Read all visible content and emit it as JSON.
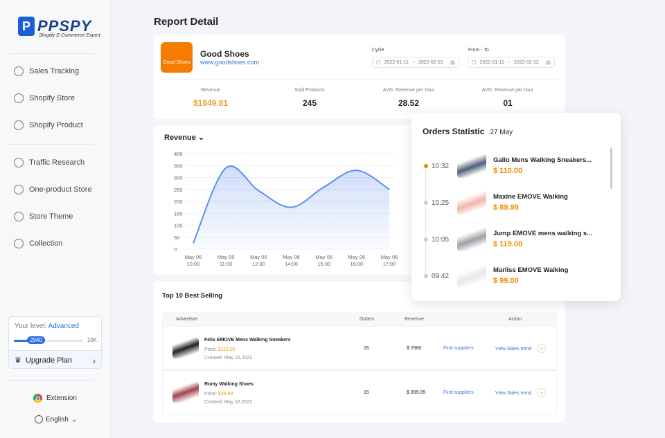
{
  "brand": {
    "name": "PPSPY",
    "tagline": "Shopify E-Commerce Expert"
  },
  "sidebar": {
    "items": [
      {
        "label": "Sales Tracking",
        "icon": "chart-icon"
      },
      {
        "label": "Shopify Store",
        "icon": "store-icon"
      },
      {
        "label": "Shopify Product",
        "icon": "product-icon"
      },
      {
        "label": "Traffic Research",
        "icon": "pie-icon"
      },
      {
        "label": "One-product Store",
        "icon": "home-icon"
      },
      {
        "label": "Store Theme",
        "icon": "palette-icon"
      },
      {
        "label": "Collection",
        "icon": "star-icon"
      }
    ],
    "level": {
      "label": "Your level:",
      "value": "Advanced",
      "points": "2940",
      "max": "10K",
      "progress": 0.294
    },
    "upgrade": "Upgrade Plan",
    "extension": "Extension",
    "language": "English"
  },
  "page_title": "Report Detail",
  "shop": {
    "logo_text": "Good Shoes",
    "name": "Good Shoes",
    "url": "www.goodshoes.com",
    "cycle": {
      "label": "Cycle",
      "from": "2022-01-11",
      "to": "2022-02-22"
    },
    "range": {
      "label": "From - To",
      "from": "2022-01-11",
      "to": "2022-02-22"
    },
    "stats": [
      {
        "label": "Revenue",
        "value": "$1849.81"
      },
      {
        "label": "Sold Products",
        "value": "245"
      },
      {
        "label": "AVG. Revenue per hour",
        "value": "28.52"
      },
      {
        "label": "AVG. Revenue per hour",
        "value": "01"
      }
    ]
  },
  "chart_data": {
    "type": "area",
    "title": "Revenue",
    "categories": [
      "May 06 10:00",
      "May 06 11:00",
      "May 06 12:00",
      "May 06 14:00",
      "May 06 15:00",
      "May 06 16:00",
      "May 06 17:00"
    ],
    "values": [
      25,
      340,
      245,
      175,
      260,
      330,
      250
    ],
    "yticks": [
      0,
      50,
      100,
      150,
      200,
      250,
      300,
      350,
      400
    ],
    "ylim": [
      0,
      400
    ],
    "color": "#5b8def"
  },
  "orders": {
    "title": "Orders Statistic",
    "date": "27 May",
    "items": [
      {
        "time": "10:32",
        "name": "Gallo Mens Walking Sneakers...",
        "price": "$ 110.00",
        "active": true,
        "color": "#50607a"
      },
      {
        "time": "10:25",
        "name": "Maxine EMOVE Walking",
        "price": "$ 89.99",
        "color": "#f0b5ae"
      },
      {
        "time": "10:05",
        "name": "Jump EMOVE mens walking s...",
        "price": "$ 119.00",
        "color": "#9aa0a6"
      },
      {
        "time": "09:42",
        "name": "Marliss EMOVE Walking",
        "price": "$ 99.00",
        "color": "#e6e8ea"
      }
    ]
  },
  "best": {
    "title": "Top 10 Best Selling",
    "headers": [
      "Advertiser",
      "Orders",
      "Revenue",
      "Action"
    ],
    "rows": [
      {
        "name": "Felix EMOVE Mens Walking Sneakers",
        "price_label": "Price:",
        "price": "$110.00",
        "created_label": "Created:",
        "created": "May 16,2022",
        "orders": "26",
        "revenue": "$ 2960",
        "find": "Find suppliers",
        "trend": "View Sales trend",
        "color": "#222"
      },
      {
        "name": "Romy Walking Shoes",
        "price_label": "Price:",
        "price": "$39.99",
        "created_label": "Created:",
        "created": "May 16,2022",
        "orders": "15",
        "revenue": "$ 899.85",
        "find": "Find suppliers",
        "trend": "View Sales trend",
        "color": "#a0444e"
      }
    ]
  }
}
